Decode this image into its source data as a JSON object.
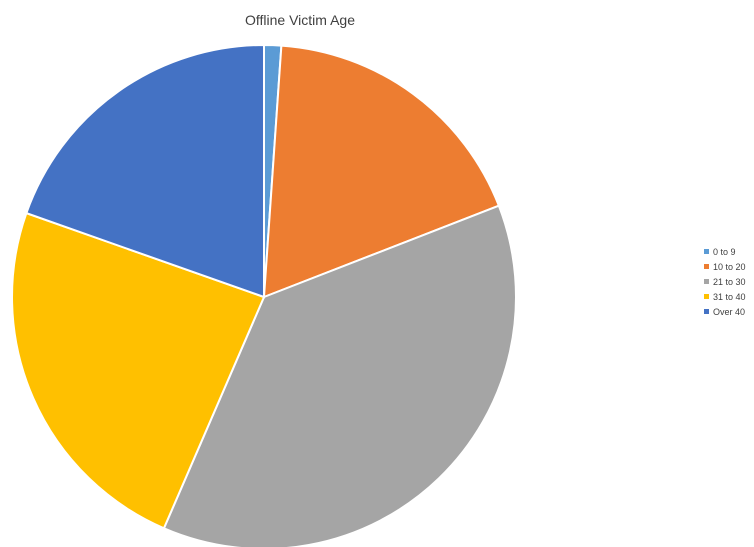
{
  "chart_data": {
    "type": "pie",
    "title": "Offline Victim Age",
    "categories": [
      "0 to 9",
      "10 to 20",
      "21 to 30",
      "31 to 40",
      "Over 40"
    ],
    "values": [
      1.1,
      18.0,
      37.4,
      23.9,
      19.6
    ],
    "colors": [
      "#5B9BD5",
      "#ED7D31",
      "#A5A5A5",
      "#FFC000",
      "#4472C4"
    ],
    "legend": "right"
  }
}
